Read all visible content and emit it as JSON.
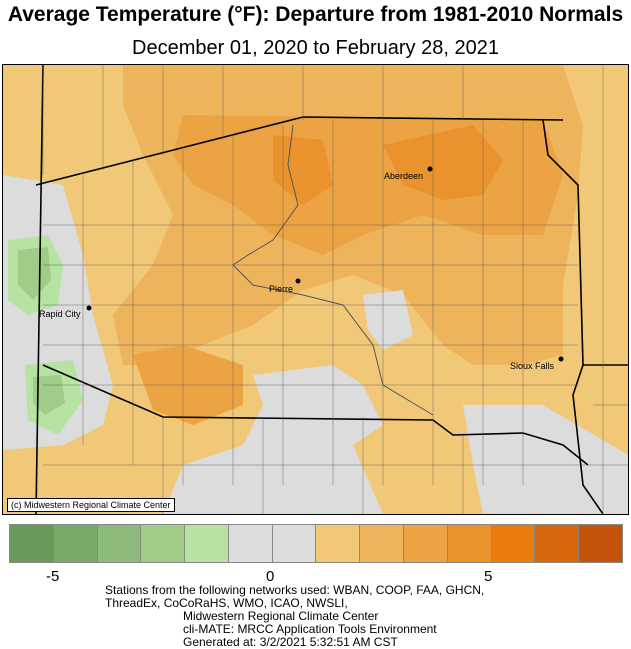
{
  "title": "Average Temperature (°F): Departure from 1981-2010 Normals",
  "subtitle": "December 01, 2020 to February 28, 2021",
  "map": {
    "credit": "(c) Midwestern Regional Climate Center",
    "cities": [
      {
        "name": "Aberdeen"
      },
      {
        "name": "Pierre"
      },
      {
        "name": "Rapid City"
      },
      {
        "name": "Sioux Falls"
      }
    ]
  },
  "legend": {
    "colors": [
      "#6a9a5a",
      "#7aaa68",
      "#8cba78",
      "#9fcd88",
      "#b6e2a2",
      "#dcdcdc",
      "#dcdcdc",
      "#f0c878",
      "#edb45c",
      "#eca344",
      "#ea922e",
      "#e87c0c",
      "#d8660c",
      "#c4540a"
    ],
    "ticks": [
      "-5",
      "0",
      "5"
    ]
  },
  "footer": {
    "line1": "Stations from the following networks used: WBAN, COOP, FAA, GHCN,",
    "line2": "ThreadEx, CoCoRaHS, WMO, ICAO, NWSLI,",
    "line3": "Midwestern Regional Climate Center",
    "line4": "cli-MATE: MRCC Application Tools Environment",
    "line5": "Generated at: 3/2/2021 5:32:51 AM CST"
  }
}
